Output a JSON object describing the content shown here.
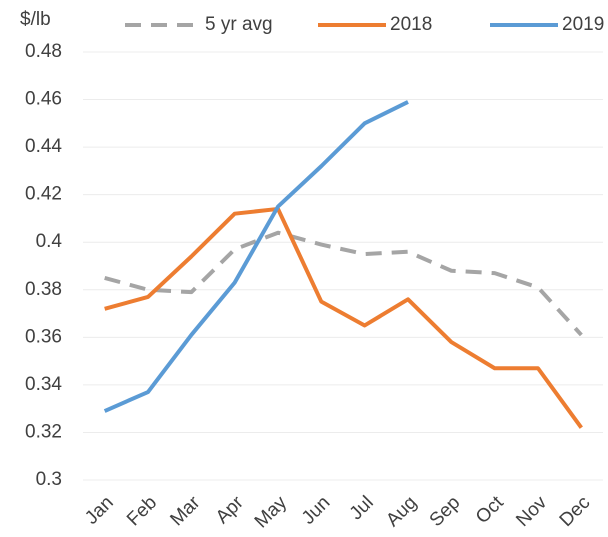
{
  "chart_data": {
    "type": "line",
    "y_label": "$/lb",
    "categories": [
      "Jan",
      "Feb",
      "Mar",
      "Apr",
      "May",
      "Jun",
      "Jul",
      "Aug",
      "Sep",
      "Oct",
      "Nov",
      "Dec"
    ],
    "series": [
      {
        "name": "5 yr avg",
        "color": "#a5a5a5",
        "dashed": true,
        "values": [
          0.385,
          0.38,
          0.379,
          0.397,
          0.404,
          0.399,
          0.395,
          0.396,
          0.388,
          0.387,
          0.381,
          0.361
        ]
      },
      {
        "name": "2018",
        "color": "#ed7d31",
        "dashed": false,
        "values": [
          0.372,
          0.377,
          0.394,
          0.412,
          0.414,
          0.375,
          0.365,
          0.376,
          0.358,
          0.347,
          0.347,
          0.322
        ]
      },
      {
        "name": "2019",
        "color": "#5b9bd5",
        "dashed": false,
        "values": [
          0.329,
          0.337,
          0.361,
          0.383,
          0.415,
          0.432,
          0.45,
          0.459,
          null,
          null,
          null,
          null
        ]
      }
    ],
    "ylim": [
      0.3,
      0.48
    ],
    "yticks": [
      0.3,
      0.32,
      0.34,
      0.36,
      0.38,
      0.4,
      0.42,
      0.44,
      0.46,
      0.48
    ],
    "grid": true
  }
}
